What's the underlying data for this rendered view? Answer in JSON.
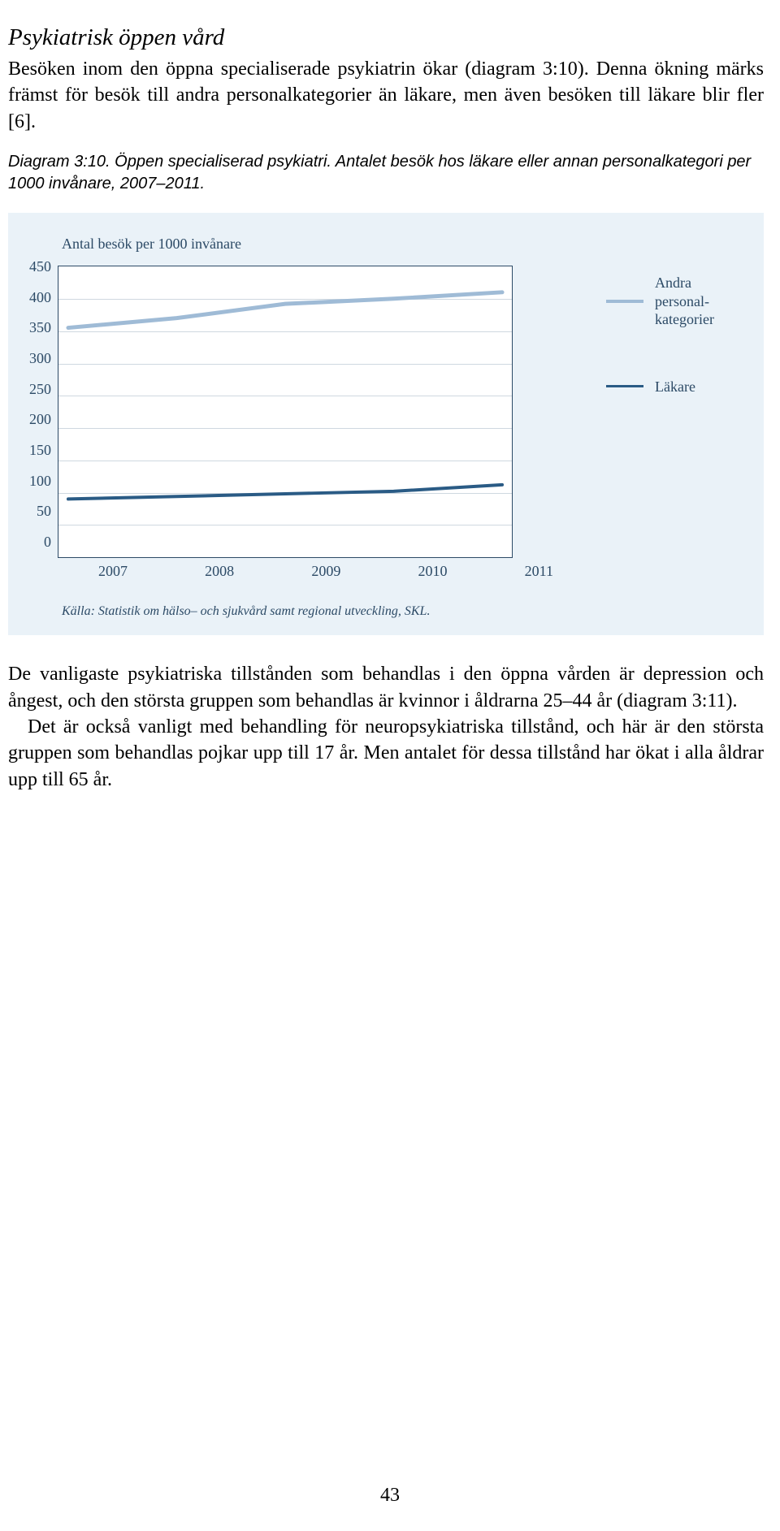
{
  "heading": "Psykiatrisk öppen vård",
  "para1": "Besöken inom den öppna specialiserade psykiatrin ökar (diagram 3:10). Denna ökning märks främst för besök till andra personalkategorier än läkare, men även besöken till läkare blir fler [6].",
  "caption": "Diagram 3:10. Öppen specialiserad psykiatri. Antalet besök hos läkare eller annan personalkategori per 1000 invånare, 2007–2011.",
  "chart": {
    "axis_title": "Antal besök per 1000 invånare",
    "ylim": [
      0,
      450
    ],
    "ytick_step": 50,
    "yticks": [
      "450",
      "400",
      "350",
      "300",
      "250",
      "200",
      "150",
      "100",
      "50",
      "0"
    ],
    "xticks": [
      "2007",
      "2008",
      "2009",
      "2010",
      "2011"
    ],
    "background_color": "#eaf2f8",
    "plot_bg": "#ffffff",
    "border_color": "#2c4a66",
    "grid_color": "#cfd8e0",
    "text_color": "#2c4a66",
    "series": [
      {
        "name": "Andra personalkategorier",
        "label": "Andra personal-kategorier",
        "color": "#9fbbd6",
        "width": 5,
        "values": [
          355,
          370,
          392,
          400,
          410
        ]
      },
      {
        "name": "Läkare",
        "label": "Läkare",
        "color": "#2a5b85",
        "width": 4,
        "values": [
          90,
          94,
          98,
          102,
          112
        ]
      }
    ],
    "source": "Källa: Statistik om hälso– och sjukvård samt regional utveckling, SKL."
  },
  "para2": "De vanligaste psykiatriska tillstånden som behandlas i den öppna vården är depression och ångest, och den största gruppen som behandlas är kvinnor i åldrarna 25–44 år (diagram 3:11).",
  "para3": "Det är också vanligt med behandling för neuropsykiatriska tillstånd, och här är den största gruppen som behandlas pojkar upp till 17 år. Men antalet för dessa tillstånd har ökat i alla åldrar upp till 65 år.",
  "page_number": "43"
}
